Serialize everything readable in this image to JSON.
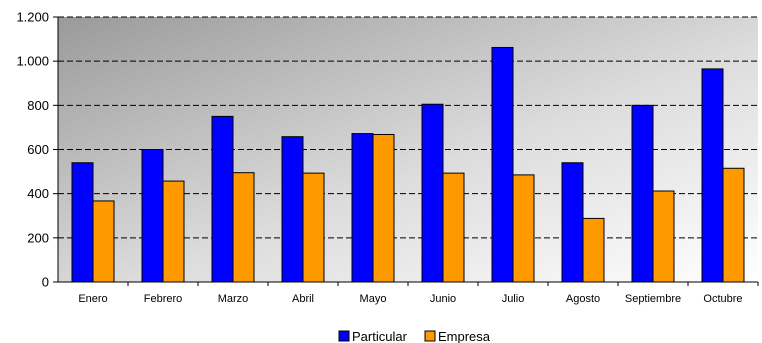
{
  "chart_data": {
    "type": "bar",
    "categories": [
      "Enero",
      "Febrero",
      "Marzo",
      "Abril",
      "Mayo",
      "Junio",
      "Julio",
      "Agosto",
      "Septiembre",
      "Octubre"
    ],
    "series": [
      {
        "name": "Particular",
        "color": "#0000FF",
        "values": [
          540,
          600,
          750,
          658,
          672,
          805,
          1062,
          540,
          800,
          965
        ]
      },
      {
        "name": "Empresa",
        "color": "#FF9900",
        "values": [
          367,
          457,
          495,
          493,
          668,
          493,
          485,
          288,
          412,
          515
        ]
      }
    ],
    "ylim": [
      0,
      1200
    ],
    "yticks": [
      0,
      200,
      400,
      600,
      800,
      1000,
      1200
    ],
    "ytick_labels": [
      "0",
      "200",
      "400",
      "600",
      "800",
      "1.000",
      "1.200"
    ],
    "grid": true,
    "legend": "bottom",
    "title": "",
    "xlabel": "",
    "ylabel": ""
  }
}
